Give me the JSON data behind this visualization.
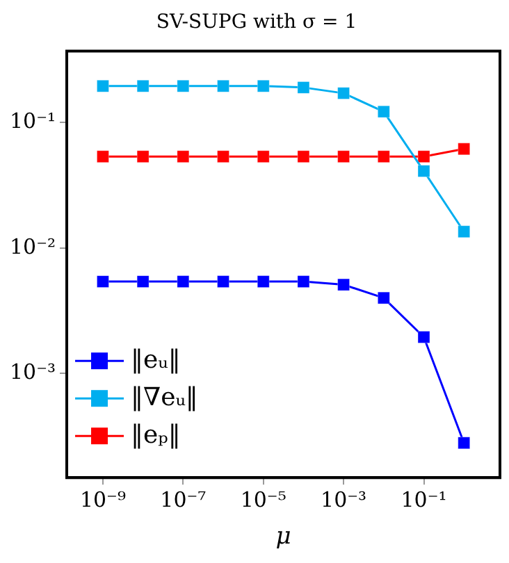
{
  "chart_data": {
    "type": "line",
    "title": "SV-SUPG with σ = 1",
    "xlabel": "μ",
    "log": "xy",
    "x": [
      1e-09,
      1e-08,
      1e-07,
      1e-06,
      1e-05,
      0.0001,
      0.001,
      0.01,
      0.1,
      1
    ],
    "series": [
      {
        "name": "‖eᵤ‖",
        "color": "#0000ff",
        "values": [
          0.0054,
          0.0054,
          0.0054,
          0.0054,
          0.0054,
          0.0054,
          0.0051,
          0.004,
          0.00195,
          0.00028
        ]
      },
      {
        "name": "‖∇eᵤ‖",
        "color": "#00aeef",
        "values": [
          0.195,
          0.195,
          0.195,
          0.195,
          0.195,
          0.19,
          0.171,
          0.122,
          0.041,
          0.0135
        ]
      },
      {
        "name": "‖eₚ‖",
        "color": "#ff0000",
        "values": [
          0.0535,
          0.0535,
          0.0535,
          0.0535,
          0.0535,
          0.0535,
          0.0535,
          0.0535,
          0.0535,
          0.0615
        ]
      }
    ],
    "xlim": [
      1.26e-10,
      7.9
    ],
    "ylim": [
      0.000148,
      0.37
    ],
    "xticks": [
      {
        "value": 1e-09,
        "label": "10⁻⁹"
      },
      {
        "value": 1e-07,
        "label": "10⁻⁷"
      },
      {
        "value": 1e-05,
        "label": "10⁻⁵"
      },
      {
        "value": 0.001,
        "label": "10⁻³"
      },
      {
        "value": 0.1,
        "label": "10⁻¹"
      }
    ],
    "yticks": [
      {
        "value": 0.001,
        "label": "10⁻³"
      },
      {
        "value": 0.01,
        "label": "10⁻²"
      },
      {
        "value": 0.1,
        "label": "10⁻¹"
      }
    ],
    "grid": false,
    "legend": "bottom left",
    "marker": "square",
    "line_style": "solid"
  }
}
